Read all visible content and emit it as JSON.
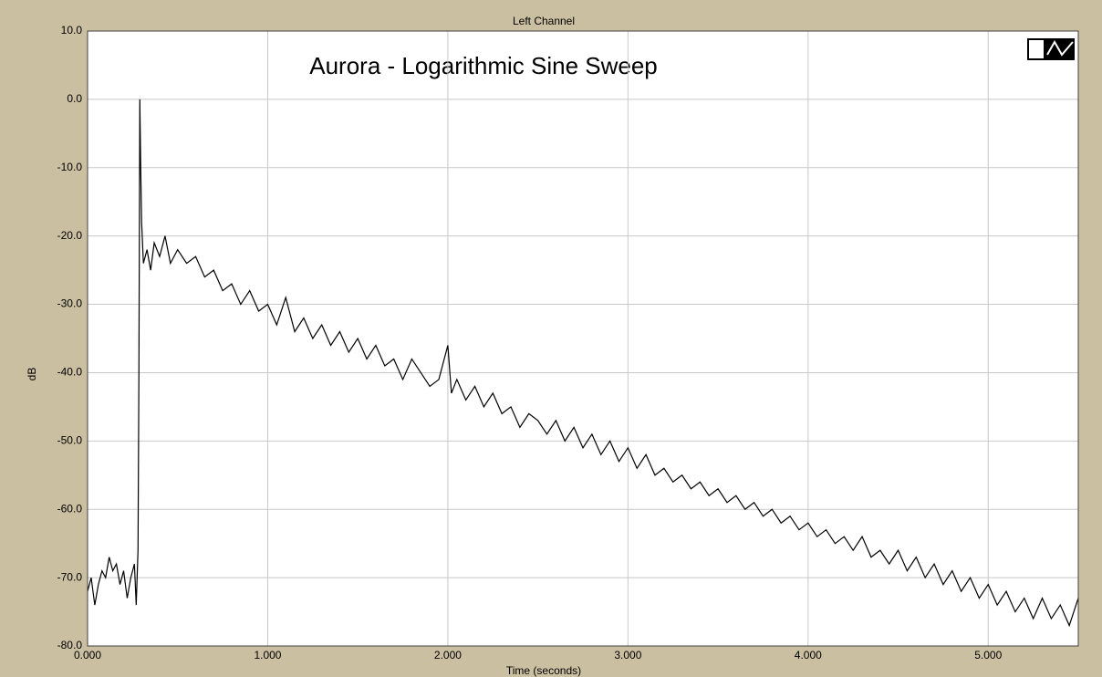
{
  "chart_data": {
    "type": "line",
    "panel_title": "Left Channel",
    "title": "Aurora - Logarithmic Sine Sweep",
    "xlabel": "Time (seconds)",
    "ylabel": "dB",
    "color": "#000000",
    "grid": true,
    "xlim": [
      0,
      5.5
    ],
    "ylim": [
      -80,
      10
    ],
    "xticks": [
      {
        "value": 0,
        "label": "0.000"
      },
      {
        "value": 1,
        "label": "1.000"
      },
      {
        "value": 2,
        "label": "2.000"
      },
      {
        "value": 3,
        "label": "3.000"
      },
      {
        "value": 4,
        "label": "4.000"
      },
      {
        "value": 5,
        "label": "5.000"
      }
    ],
    "yticks": [
      {
        "value": 10,
        "label": "10.0"
      },
      {
        "value": 0,
        "label": "0.0"
      },
      {
        "value": -10,
        "label": "-10.0"
      },
      {
        "value": -20,
        "label": "-20.0"
      },
      {
        "value": -30,
        "label": "-30.0"
      },
      {
        "value": -40,
        "label": "-40.0"
      },
      {
        "value": -50,
        "label": "-50.0"
      },
      {
        "value": -60,
        "label": "-60.0"
      },
      {
        "value": -70,
        "label": "-70.0"
      },
      {
        "value": -80,
        "label": "-80.0"
      }
    ],
    "x": [
      0,
      0.02,
      0.04,
      0.06,
      0.08,
      0.1,
      0.12,
      0.14,
      0.16,
      0.18,
      0.2,
      0.22,
      0.24,
      0.26,
      0.27,
      0.28,
      0.285,
      0.29,
      0.295,
      0.3,
      0.31,
      0.33,
      0.35,
      0.37,
      0.4,
      0.43,
      0.46,
      0.5,
      0.55,
      0.6,
      0.65,
      0.7,
      0.75,
      0.8,
      0.85,
      0.9,
      0.95,
      1.0,
      1.05,
      1.1,
      1.15,
      1.2,
      1.25,
      1.3,
      1.35,
      1.4,
      1.45,
      1.5,
      1.55,
      1.6,
      1.65,
      1.7,
      1.75,
      1.8,
      1.85,
      1.9,
      1.95,
      2.0,
      2.02,
      2.05,
      2.1,
      2.15,
      2.2,
      2.25,
      2.3,
      2.35,
      2.4,
      2.45,
      2.5,
      2.55,
      2.6,
      2.65,
      2.7,
      2.75,
      2.8,
      2.85,
      2.9,
      2.95,
      3.0,
      3.05,
      3.1,
      3.15,
      3.2,
      3.25,
      3.3,
      3.35,
      3.4,
      3.45,
      3.5,
      3.55,
      3.6,
      3.65,
      3.7,
      3.75,
      3.8,
      3.85,
      3.9,
      3.95,
      4.0,
      4.05,
      4.1,
      4.15,
      4.2,
      4.25,
      4.3,
      4.35,
      4.4,
      4.45,
      4.5,
      4.55,
      4.6,
      4.65,
      4.7,
      4.75,
      4.8,
      4.85,
      4.9,
      4.95,
      5.0,
      5.05,
      5.1,
      5.15,
      5.2,
      5.25,
      5.3,
      5.35,
      5.4,
      5.45,
      5.5
    ],
    "values": [
      -72,
      -70,
      -74,
      -71,
      -69,
      -70,
      -67,
      -69,
      -68,
      -71,
      -69,
      -73,
      -70,
      -68,
      -74,
      -66,
      -40,
      0,
      -10,
      -18,
      -24,
      -22,
      -25,
      -21,
      -23,
      -20,
      -24,
      -22,
      -24,
      -23,
      -26,
      -25,
      -28,
      -27,
      -30,
      -28,
      -31,
      -30,
      -33,
      -29,
      -34,
      -32,
      -35,
      -33,
      -36,
      -34,
      -37,
      -35,
      -38,
      -36,
      -39,
      -38,
      -41,
      -38,
      -40,
      -42,
      -41,
      -36,
      -43,
      -41,
      -44,
      -42,
      -45,
      -43,
      -46,
      -45,
      -48,
      -46,
      -47,
      -49,
      -47,
      -50,
      -48,
      -51,
      -49,
      -52,
      -50,
      -53,
      -51,
      -54,
      -52,
      -55,
      -54,
      -56,
      -55,
      -57,
      -56,
      -58,
      -57,
      -59,
      -58,
      -60,
      -59,
      -61,
      -60,
      -62,
      -61,
      -63,
      -62,
      -64,
      -63,
      -65,
      -64,
      -66,
      -64,
      -67,
      -66,
      -68,
      -66,
      -69,
      -67,
      -70,
      -68,
      -71,
      -69,
      -72,
      -70,
      -73,
      -71,
      -74,
      -72,
      -75,
      -73,
      -76,
      -73,
      -76,
      -74,
      -77,
      -73
    ]
  }
}
